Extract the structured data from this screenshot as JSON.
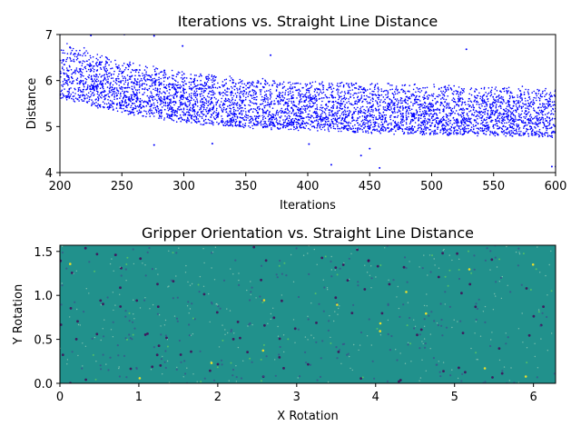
{
  "chart_data": [
    {
      "type": "scatter",
      "title": "Iterations vs. Straight Line Distance",
      "xlabel": "Iterations",
      "ylabel": "Distance",
      "xlim": [
        200,
        600
      ],
      "ylim": [
        4,
        7
      ],
      "xticks": [
        "200",
        "250",
        "300",
        "350",
        "400",
        "450",
        "500",
        "550",
        "600"
      ],
      "yticks": [
        "4",
        "5",
        "6",
        "7"
      ],
      "grid": false,
      "series": [
        {
          "color": "#0000ff",
          "marker_size_px": 0.8,
          "band": {
            "x": [
              200,
              250,
              300,
              350,
              400,
              450,
              500,
              550,
              600
            ],
            "upper": [
              6.85,
              6.45,
              6.2,
              6.05,
              6.0,
              5.95,
              5.9,
              5.87,
              5.85
            ],
            "lower": [
              5.6,
              5.3,
              5.1,
              4.98,
              4.92,
              4.87,
              4.83,
              4.8,
              4.78
            ]
          },
          "outliers": [
            {
              "x": 200,
              "y": 7.0
            },
            {
              "x": 225,
              "y": 6.98
            },
            {
              "x": 252,
              "y": 7.0
            },
            {
              "x": 276,
              "y": 6.97
            },
            {
              "x": 299,
              "y": 6.75
            },
            {
              "x": 370,
              "y": 6.55
            },
            {
              "x": 528,
              "y": 6.68
            },
            {
              "x": 276,
              "y": 4.6
            },
            {
              "x": 323,
              "y": 4.63
            },
            {
              "x": 401,
              "y": 4.62
            },
            {
              "x": 419,
              "y": 4.17
            },
            {
              "x": 443,
              "y": 4.37
            },
            {
              "x": 450,
              "y": 4.52
            },
            {
              "x": 458,
              "y": 4.1
            },
            {
              "x": 597,
              "y": 4.13
            },
            {
              "x": 600,
              "y": 4.13
            }
          ]
        }
      ]
    },
    {
      "type": "heatmap",
      "title": "Gripper Orientation vs. Straight Line Distance",
      "xlabel": "X Rotation",
      "ylabel": "Y Rotation",
      "xlim": [
        0,
        6.28
      ],
      "ylim": [
        0,
        1.57
      ],
      "xticks": [
        "0",
        "1",
        "2",
        "3",
        "4",
        "5",
        "6"
      ],
      "yticks": [
        "0.0",
        "0.5",
        "1.0",
        "1.5"
      ],
      "colormap": "viridis",
      "background_color": "#21918c",
      "speckle_colors": [
        "#440154",
        "#3b528b",
        "#5ec962",
        "#fde725",
        "#c8e6c9"
      ],
      "grid": false
    }
  ]
}
